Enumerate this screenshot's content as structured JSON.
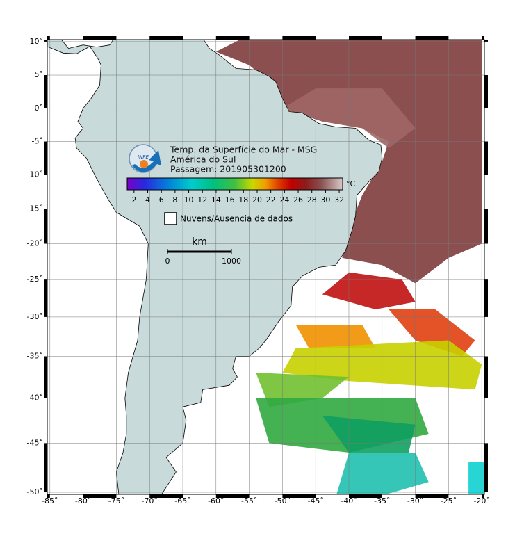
{
  "header": {
    "title": "Temp. da Superfície do Mar - MSG",
    "region": "América do Sul",
    "pass": "Passagem: 201905301200"
  },
  "colorbar": {
    "unit": "°C",
    "range": [
      1,
      32.5
    ],
    "ticks": [
      2,
      4,
      6,
      8,
      10,
      12,
      14,
      16,
      18,
      20,
      22,
      24,
      26,
      28,
      30,
      32
    ]
  },
  "legend": {
    "label": "Nuvens/Ausencia de dados"
  },
  "scale": {
    "unit": "km",
    "ticks": [
      0,
      1000
    ]
  },
  "map": {
    "xlim": [
      -85.4,
      -19.6
    ],
    "ylim": [
      -50.2,
      10.3
    ],
    "xticks": [
      {
        "value": -85,
        "label": "-85˚"
      },
      {
        "value": -80,
        "label": "-80˚"
      },
      {
        "value": -75,
        "label": "-75˚"
      },
      {
        "value": -70,
        "label": "-70˚"
      },
      {
        "value": -65,
        "label": "-65˚"
      },
      {
        "value": -60,
        "label": "-60˚"
      },
      {
        "value": -55,
        "label": "-55˚"
      },
      {
        "value": -50,
        "label": "-50˚"
      },
      {
        "value": -45,
        "label": "-45˚"
      },
      {
        "value": -40,
        "label": "-40˚"
      },
      {
        "value": -35,
        "label": "-35˚"
      },
      {
        "value": -30,
        "label": "-30˚"
      },
      {
        "value": -25,
        "label": "-25˚"
      },
      {
        "value": -20,
        "label": "-20˚"
      }
    ],
    "yticks": [
      {
        "value": 10,
        "label": "10˚"
      },
      {
        "value": 5,
        "label": "5˚"
      },
      {
        "value": 0,
        "label": "0˚"
      },
      {
        "value": -5,
        "label": "-5˚"
      },
      {
        "value": -10,
        "label": "-10˚"
      },
      {
        "value": -15,
        "label": "-15˚"
      },
      {
        "value": -20,
        "label": "-20˚"
      },
      {
        "value": -25,
        "label": "-25˚"
      },
      {
        "value": -30,
        "label": "-30˚"
      },
      {
        "value": -35,
        "label": "-35˚"
      },
      {
        "value": -40,
        "label": "-40˚"
      },
      {
        "value": -45,
        "label": "-45˚"
      },
      {
        "value": -50,
        "label": "-50˚"
      }
    ]
  }
}
